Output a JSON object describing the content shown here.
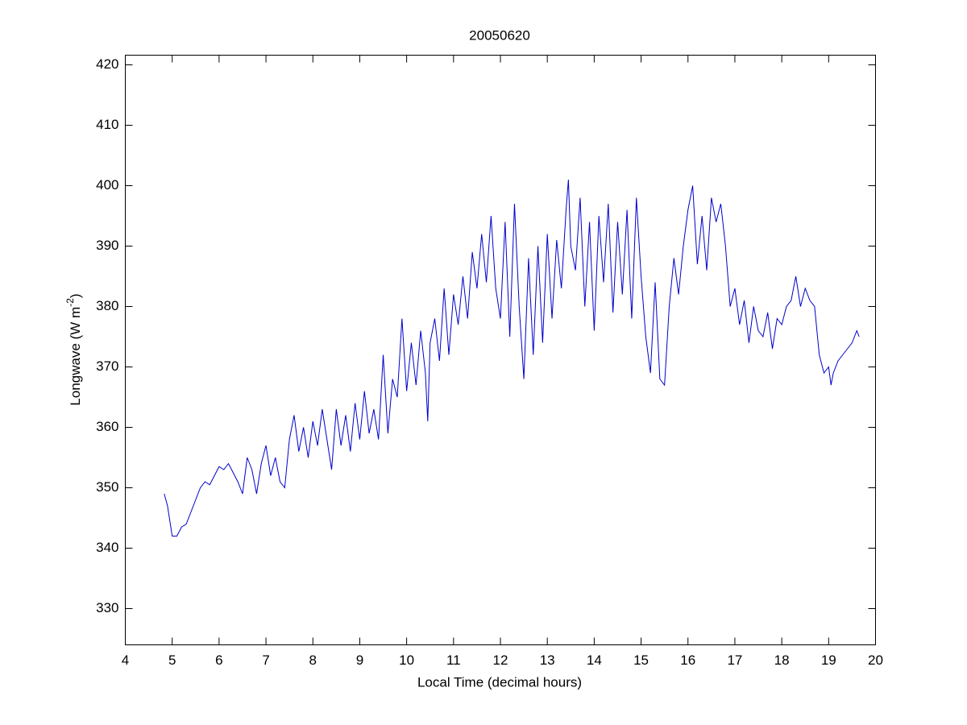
{
  "chart_data": {
    "type": "line",
    "title": "20050620",
    "xlabel": "Local Time (decimal hours)",
    "ylabel": "Longwave (W m",
    "ylabel_superscript": "-2",
    "ylabel_close": ")",
    "xlim": [
      4,
      20
    ],
    "xticks": [
      4,
      5,
      6,
      7,
      8,
      9,
      10,
      11,
      12,
      13,
      14,
      15,
      16,
      17,
      18,
      19,
      20
    ],
    "ylim": [
      324,
      421.6
    ],
    "yticks": [
      330,
      340,
      350,
      360,
      370,
      380,
      390,
      400,
      410,
      420
    ],
    "grid": false,
    "series": [
      {
        "color": "#0000cc",
        "x": [
          4.83,
          4.9,
          5.0,
          5.1,
          5.2,
          5.3,
          5.4,
          5.5,
          5.6,
          5.7,
          5.8,
          5.9,
          6.0,
          6.1,
          6.2,
          6.3,
          6.4,
          6.5,
          6.6,
          6.7,
          6.8,
          6.9,
          7.0,
          7.1,
          7.2,
          7.3,
          7.4,
          7.5,
          7.6,
          7.7,
          7.8,
          7.9,
          8.0,
          8.1,
          8.2,
          8.3,
          8.4,
          8.5,
          8.6,
          8.7,
          8.8,
          8.9,
          9.0,
          9.1,
          9.2,
          9.3,
          9.4,
          9.5,
          9.6,
          9.7,
          9.8,
          9.9,
          10.0,
          10.1,
          10.2,
          10.3,
          10.4,
          10.45,
          10.5,
          10.6,
          10.7,
          10.8,
          10.9,
          11.0,
          11.1,
          11.2,
          11.3,
          11.4,
          11.5,
          11.6,
          11.7,
          11.8,
          11.9,
          12.0,
          12.1,
          12.2,
          12.3,
          12.4,
          12.5,
          12.6,
          12.7,
          12.8,
          12.9,
          13.0,
          13.1,
          13.2,
          13.3,
          13.4,
          13.45,
          13.5,
          13.6,
          13.7,
          13.8,
          13.9,
          14.0,
          14.1,
          14.2,
          14.3,
          14.4,
          14.5,
          14.6,
          14.7,
          14.8,
          14.9,
          15.0,
          15.1,
          15.2,
          15.3,
          15.4,
          15.5,
          15.6,
          15.7,
          15.8,
          15.9,
          16.0,
          16.1,
          16.2,
          16.3,
          16.4,
          16.5,
          16.6,
          16.7,
          16.8,
          16.9,
          17.0,
          17.1,
          17.2,
          17.3,
          17.4,
          17.5,
          17.6,
          17.7,
          17.8,
          17.9,
          18.0,
          18.1,
          18.2,
          18.3,
          18.4,
          18.5,
          18.6,
          18.7,
          18.8,
          18.9,
          19.0,
          19.05,
          19.1,
          19.2,
          19.3,
          19.4,
          19.5,
          19.6,
          19.65
        ],
        "values": [
          349,
          347,
          342,
          342,
          343.5,
          344,
          346,
          348,
          350,
          351,
          350.5,
          352,
          353.5,
          353,
          354,
          352.5,
          351,
          349,
          355,
          353,
          349,
          354,
          357,
          352,
          355,
          351,
          350,
          358,
          362,
          356,
          360,
          355,
          361,
          357,
          363,
          358,
          353,
          363,
          357,
          362,
          356,
          364,
          358,
          366,
          359,
          363,
          358,
          372,
          359,
          368,
          365,
          378,
          366,
          374,
          367,
          376,
          369,
          361,
          374,
          378,
          371,
          383,
          372,
          382,
          377,
          385,
          378,
          389,
          383,
          392,
          384,
          395,
          383,
          378,
          394,
          375,
          397,
          380,
          368,
          388,
          372,
          390,
          374,
          392,
          378,
          391,
          383,
          396,
          401,
          390,
          386,
          398,
          380,
          394,
          376,
          395,
          384,
          397,
          379,
          394,
          382,
          396,
          378,
          398,
          385,
          375,
          369,
          384,
          368,
          367,
          380,
          388,
          382,
          390,
          396,
          400,
          387,
          395,
          386,
          398,
          394,
          397,
          390,
          380,
          383,
          377,
          381,
          374,
          380,
          376,
          375,
          379,
          373,
          378,
          377,
          380,
          381,
          385,
          380,
          383,
          381,
          380,
          372,
          369,
          370,
          367,
          369,
          371,
          372,
          373,
          374,
          376,
          375
        ]
      }
    ]
  }
}
